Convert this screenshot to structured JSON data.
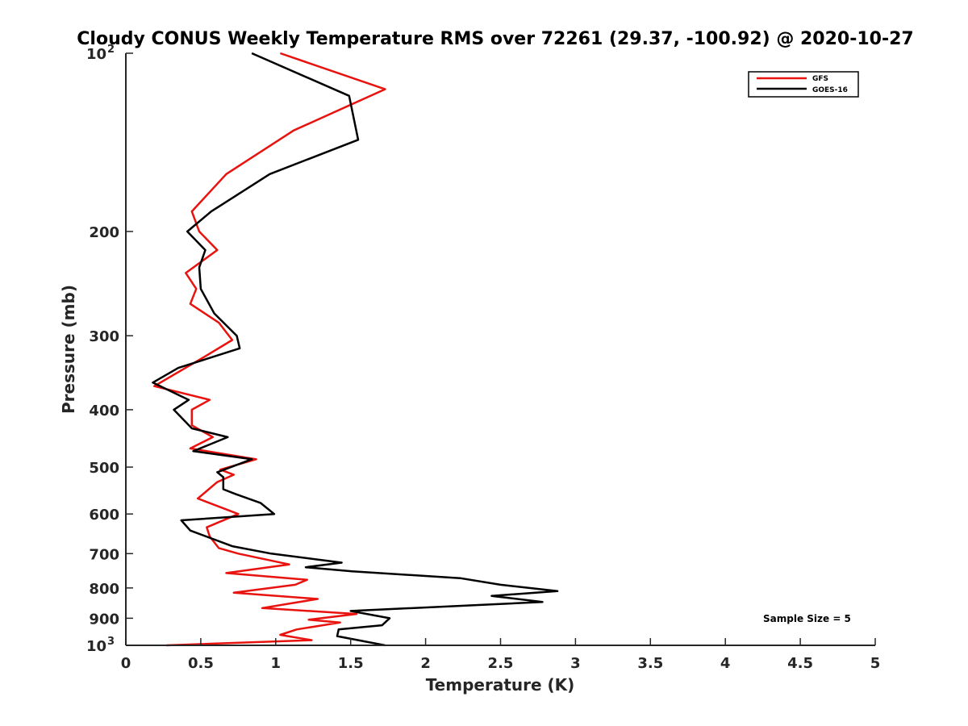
{
  "chart_data": {
    "type": "line",
    "title": "Cloudy CONUS Weekly Temperature RMS over 72261 (29.37, -100.92) @ 2020-10-27",
    "xlabel": "Temperature (K)",
    "ylabel": "Pressure (mb)",
    "xlim": [
      0,
      5
    ],
    "ylim": [
      100,
      1000
    ],
    "yscale": "log",
    "y_reversed": true,
    "x_ticks": [
      "0",
      "0.5",
      "1",
      "1.5",
      "2",
      "2.5",
      "3",
      "3.5",
      "4",
      "4.5",
      "5"
    ],
    "x_tick_values": [
      0,
      0.5,
      1,
      1.5,
      2,
      2.5,
      3,
      3.5,
      4,
      4.5,
      5
    ],
    "y_ticks": [
      {
        "value": 100,
        "label": "10",
        "exp": "2"
      },
      {
        "value": 200,
        "label": "200"
      },
      {
        "value": 300,
        "label": "300"
      },
      {
        "value": 400,
        "label": "400"
      },
      {
        "value": 500,
        "label": "500"
      },
      {
        "value": 600,
        "label": "600"
      },
      {
        "value": 700,
        "label": "700"
      },
      {
        "value": 800,
        "label": "800"
      },
      {
        "value": 900,
        "label": "900"
      },
      {
        "value": 1000,
        "label": "10",
        "exp": "3"
      }
    ],
    "grid": false,
    "legend_position": "top-right",
    "annotation": "Sample Size = 5",
    "series": [
      {
        "name": "GFS",
        "color": "#e8130f",
        "points": [
          [
            1.03,
            100
          ],
          [
            1.73,
            115
          ],
          [
            1.12,
            135
          ],
          [
            0.67,
            160
          ],
          [
            0.44,
            185
          ],
          [
            0.49,
            200
          ],
          [
            0.61,
            215
          ],
          [
            0.4,
            235
          ],
          [
            0.47,
            250
          ],
          [
            0.43,
            265
          ],
          [
            0.62,
            285
          ],
          [
            0.71,
            305
          ],
          [
            0.53,
            325
          ],
          [
            0.19,
            365
          ],
          [
            0.56,
            385
          ],
          [
            0.44,
            400
          ],
          [
            0.44,
            425
          ],
          [
            0.58,
            445
          ],
          [
            0.43,
            465
          ],
          [
            0.87,
            485
          ],
          [
            0.63,
            505
          ],
          [
            0.72,
            515
          ],
          [
            0.61,
            530
          ],
          [
            0.48,
            565
          ],
          [
            0.75,
            600
          ],
          [
            0.54,
            632
          ],
          [
            0.56,
            655
          ],
          [
            0.62,
            685
          ],
          [
            0.75,
            700
          ],
          [
            1.09,
            730
          ],
          [
            0.67,
            755
          ],
          [
            1.21,
            775
          ],
          [
            1.13,
            790
          ],
          [
            0.72,
            815
          ],
          [
            1.28,
            835
          ],
          [
            0.91,
            865
          ],
          [
            1.54,
            885
          ],
          [
            1.22,
            905
          ],
          [
            1.43,
            915
          ],
          [
            1.14,
            940
          ],
          [
            1.03,
            960
          ],
          [
            1.24,
            980
          ],
          [
            0.27,
            1000
          ]
        ]
      },
      {
        "name": "GOES-16",
        "color": "#000000",
        "points": [
          [
            0.84,
            100
          ],
          [
            1.49,
            118
          ],
          [
            1.55,
            140
          ],
          [
            0.96,
            160
          ],
          [
            0.57,
            185
          ],
          [
            0.41,
            200
          ],
          [
            0.53,
            215
          ],
          [
            0.49,
            230
          ],
          [
            0.5,
            250
          ],
          [
            0.59,
            275
          ],
          [
            0.74,
            300
          ],
          [
            0.76,
            315
          ],
          [
            0.35,
            340
          ],
          [
            0.18,
            360
          ],
          [
            0.42,
            385
          ],
          [
            0.32,
            400
          ],
          [
            0.44,
            430
          ],
          [
            0.68,
            445
          ],
          [
            0.45,
            470
          ],
          [
            0.84,
            485
          ],
          [
            0.61,
            510
          ],
          [
            0.65,
            520
          ],
          [
            0.65,
            545
          ],
          [
            0.73,
            555
          ],
          [
            0.9,
            575
          ],
          [
            0.99,
            600
          ],
          [
            0.37,
            615
          ],
          [
            0.43,
            640
          ],
          [
            0.71,
            680
          ],
          [
            0.97,
            700
          ],
          [
            1.44,
            725
          ],
          [
            1.2,
            738
          ],
          [
            1.51,
            750
          ],
          [
            2.23,
            770
          ],
          [
            2.5,
            790
          ],
          [
            2.88,
            810
          ],
          [
            2.44,
            825
          ],
          [
            2.78,
            845
          ],
          [
            1.5,
            875
          ],
          [
            1.76,
            900
          ],
          [
            1.71,
            925
          ],
          [
            1.42,
            940
          ],
          [
            1.41,
            965
          ],
          [
            1.73,
            1000
          ]
        ]
      }
    ]
  }
}
